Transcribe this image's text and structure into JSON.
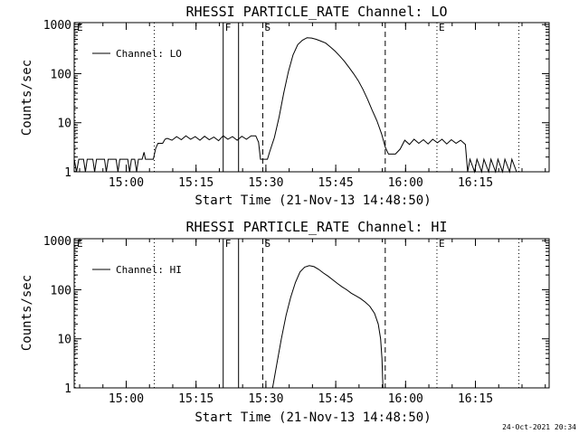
{
  "chart_data": [
    {
      "type": "line",
      "title": "RHESSI PARTICLE_RATE Channel: LO",
      "xlabel": "Start Time (21-Nov-13 14:48:50)",
      "ylabel": "Counts/sec",
      "y_scale": "log",
      "ylim": [
        1,
        1000
      ],
      "xlim_minutes_after_1448_50": [
        0,
        102
      ],
      "x_tick_labels": [
        "15:00",
        "15:15",
        "15:30",
        "15:45",
        "16:00",
        "16:15"
      ],
      "x_tick_minutes": [
        11.17,
        26.17,
        41.17,
        56.17,
        71.17,
        86.17
      ],
      "y_tick_labels": [
        "1",
        "10",
        "100",
        "1000"
      ],
      "y_tick_values": [
        1,
        10,
        100,
        1000
      ],
      "legend": {
        "label": "Channel: LO",
        "position": "top-left"
      },
      "grid": false,
      "event_markers": [
        {
          "label": "E",
          "minute": 0.2,
          "style": "dotted"
        },
        {
          "label": "",
          "minute": 17.2,
          "style": "dotted"
        },
        {
          "label": "F",
          "minute": 32.0,
          "style": "solid"
        },
        {
          "label": "",
          "minute": 35.3,
          "style": "solid"
        },
        {
          "label": "S",
          "minute": 40.5,
          "style": "dashed"
        },
        {
          "label": "",
          "minute": 66.8,
          "style": "dashed"
        },
        {
          "label": "E",
          "minute": 77.9,
          "style": "dotted"
        },
        {
          "label": "",
          "minute": 95.5,
          "style": "dotted"
        }
      ],
      "series": [
        {
          "name": "Channel: LO",
          "points": [
            [
              0,
              1.8
            ],
            [
              0.5,
              1
            ],
            [
              1,
              1.8
            ],
            [
              2,
              1.8
            ],
            [
              2.4,
              1
            ],
            [
              2.8,
              1.8
            ],
            [
              4,
              1.8
            ],
            [
              4.4,
              1
            ],
            [
              4.8,
              1.8
            ],
            [
              6.5,
              1.8
            ],
            [
              6.9,
              1
            ],
            [
              7.3,
              1.8
            ],
            [
              9,
              1.8
            ],
            [
              9.4,
              1
            ],
            [
              9.8,
              1.8
            ],
            [
              11.5,
              1.8
            ],
            [
              11.9,
              1
            ],
            [
              12.3,
              1.8
            ],
            [
              13,
              1.8
            ],
            [
              13.4,
              1
            ],
            [
              13.8,
              1.8
            ],
            [
              14.6,
              1.8
            ],
            [
              15,
              2.5
            ],
            [
              15.3,
              1.8
            ],
            [
              17,
              1.8
            ],
            [
              17.5,
              3
            ],
            [
              18,
              3.8
            ],
            [
              19,
              3.8
            ],
            [
              19.5,
              4.6
            ],
            [
              20,
              4.8
            ],
            [
              21,
              4.4
            ],
            [
              22,
              5.2
            ],
            [
              23,
              4.5
            ],
            [
              24,
              5.4
            ],
            [
              25,
              4.6
            ],
            [
              26,
              5.2
            ],
            [
              27,
              4.4
            ],
            [
              28,
              5.3
            ],
            [
              29,
              4.5
            ],
            [
              30,
              5.1
            ],
            [
              31,
              4.3
            ],
            [
              32,
              5.4
            ],
            [
              33,
              4.6
            ],
            [
              34,
              5.2
            ],
            [
              35,
              4.4
            ],
            [
              36,
              5.3
            ],
            [
              37,
              4.6
            ],
            [
              38,
              5.4
            ],
            [
              39,
              5.4
            ],
            [
              39.6,
              4
            ],
            [
              40,
              1.8
            ],
            [
              41.5,
              1.8
            ],
            [
              42,
              2.6
            ],
            [
              43,
              5
            ],
            [
              44,
              13
            ],
            [
              45,
              40
            ],
            [
              46,
              110
            ],
            [
              47,
              240
            ],
            [
              48,
              390
            ],
            [
              49,
              480
            ],
            [
              50,
              540
            ],
            [
              51,
              530
            ],
            [
              52,
              500
            ],
            [
              53,
              460
            ],
            [
              54,
              420
            ],
            [
              55,
              350
            ],
            [
              56,
              290
            ],
            [
              57,
              230
            ],
            [
              58,
              180
            ],
            [
              59,
              135
            ],
            [
              60,
              100
            ],
            [
              61,
              72
            ],
            [
              62,
              48
            ],
            [
              63,
              30
            ],
            [
              64,
              18
            ],
            [
              65,
              11
            ],
            [
              66,
              6
            ],
            [
              66.8,
              3.2
            ],
            [
              67.5,
              2.3
            ],
            [
              69,
              2.3
            ],
            [
              70,
              2.9
            ],
            [
              71,
              4.4
            ],
            [
              72,
              3.6
            ],
            [
              73,
              4.6
            ],
            [
              74,
              3.8
            ],
            [
              75,
              4.5
            ],
            [
              76,
              3.7
            ],
            [
              77,
              4.6
            ],
            [
              78,
              3.9
            ],
            [
              79,
              4.6
            ],
            [
              80,
              3.7
            ],
            [
              81,
              4.5
            ],
            [
              82,
              3.8
            ],
            [
              83,
              4.4
            ],
            [
              84,
              3.6
            ],
            [
              84.5,
              1
            ],
            [
              85,
              1.8
            ],
            [
              86,
              1
            ],
            [
              86.5,
              1.8
            ],
            [
              87.5,
              1
            ],
            [
              88,
              1.8
            ],
            [
              89,
              1
            ],
            [
              89.5,
              1.8
            ],
            [
              90.5,
              1
            ],
            [
              91,
              1.8
            ],
            [
              92,
              1
            ],
            [
              92.5,
              1.8
            ],
            [
              93.5,
              1
            ],
            [
              94,
              1.8
            ],
            [
              95,
              1
            ]
          ]
        }
      ]
    },
    {
      "type": "line",
      "title": "RHESSI PARTICLE_RATE Channel: HI",
      "xlabel": "Start Time (21-Nov-13 14:48:50)",
      "ylabel": "Counts/sec",
      "y_scale": "log",
      "ylim": [
        1,
        1000
      ],
      "xlim_minutes_after_1448_50": [
        0,
        102
      ],
      "x_tick_labels": [
        "15:00",
        "15:15",
        "15:30",
        "15:45",
        "16:00",
        "16:15"
      ],
      "x_tick_minutes": [
        11.17,
        26.17,
        41.17,
        56.17,
        71.17,
        86.17
      ],
      "y_tick_labels": [
        "1",
        "10",
        "100",
        "1000"
      ],
      "y_tick_values": [
        1,
        10,
        100,
        1000
      ],
      "legend": {
        "label": "Channel: HI",
        "position": "top-left"
      },
      "grid": false,
      "event_markers": [
        {
          "label": "E",
          "minute": 0.2,
          "style": "dotted"
        },
        {
          "label": "",
          "minute": 17.2,
          "style": "dotted"
        },
        {
          "label": "F",
          "minute": 32.0,
          "style": "solid"
        },
        {
          "label": "",
          "minute": 35.3,
          "style": "solid"
        },
        {
          "label": "S",
          "minute": 40.5,
          "style": "dashed"
        },
        {
          "label": "",
          "minute": 66.8,
          "style": "dashed"
        },
        {
          "label": "E",
          "minute": 77.9,
          "style": "dotted"
        },
        {
          "label": "",
          "minute": 95.5,
          "style": "dotted"
        }
      ],
      "series": [
        {
          "name": "Channel: HI",
          "points": [
            [
              42.6,
              1
            ],
            [
              43.5,
              3
            ],
            [
              44.5,
              10
            ],
            [
              45.5,
              30
            ],
            [
              46.5,
              70
            ],
            [
              47.5,
              140
            ],
            [
              48.5,
              230
            ],
            [
              49.5,
              290
            ],
            [
              50.5,
              310
            ],
            [
              51.5,
              295
            ],
            [
              52.5,
              260
            ],
            [
              53.5,
              220
            ],
            [
              54.5,
              190
            ],
            [
              55.5,
              160
            ],
            [
              56.5,
              135
            ],
            [
              57.5,
              115
            ],
            [
              58.5,
              100
            ],
            [
              59.5,
              85
            ],
            [
              60.5,
              75
            ],
            [
              61.5,
              66
            ],
            [
              62.5,
              56
            ],
            [
              63.5,
              46
            ],
            [
              64.5,
              33
            ],
            [
              65.3,
              20
            ],
            [
              65.8,
              10
            ],
            [
              66.1,
              4
            ],
            [
              66.3,
              1
            ]
          ]
        }
      ]
    }
  ],
  "timestamp": "24-Oct-2021 20:34"
}
